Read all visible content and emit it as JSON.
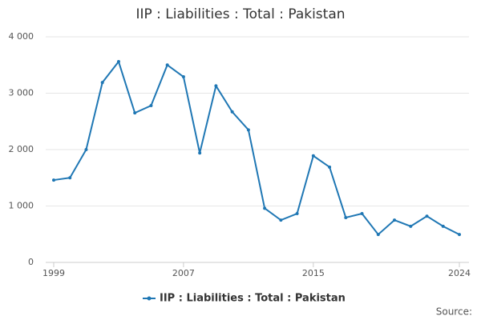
{
  "chart_data": {
    "type": "line",
    "title": "IIP : Liabilities : Total : Pakistan",
    "x": [
      1999,
      2000,
      2001,
      2002,
      2003,
      2004,
      2005,
      2006,
      2007,
      2008,
      2009,
      2010,
      2011,
      2012,
      2013,
      2014,
      2015,
      2016,
      2017,
      2018,
      2019,
      2020,
      2021,
      2022,
      2023,
      2024
    ],
    "series": [
      {
        "name": "IIP : Liabilities : Total : Pakistan",
        "color": "#1f77b4",
        "values": [
          1460,
          1500,
          2000,
          3190,
          3560,
          2650,
          2780,
          3500,
          3290,
          1940,
          3130,
          2670,
          2350,
          960,
          750,
          865,
          1890,
          1690,
          795,
          865,
          495,
          750,
          640,
          820,
          640,
          495
        ]
      }
    ],
    "xlim": [
      1999,
      2024
    ],
    "xticks": [
      1999,
      2007,
      2015,
      2024
    ],
    "ylim": [
      0,
      4000
    ],
    "yticks": [
      0,
      {
        "value": 1000,
        "label": "1 000"
      },
      {
        "value": 2000,
        "label": "2 000"
      },
      {
        "value": 3000,
        "label": "3 000"
      },
      {
        "value": 4000,
        "label": "4 000"
      }
    ],
    "grid": true,
    "source": "Source:"
  }
}
